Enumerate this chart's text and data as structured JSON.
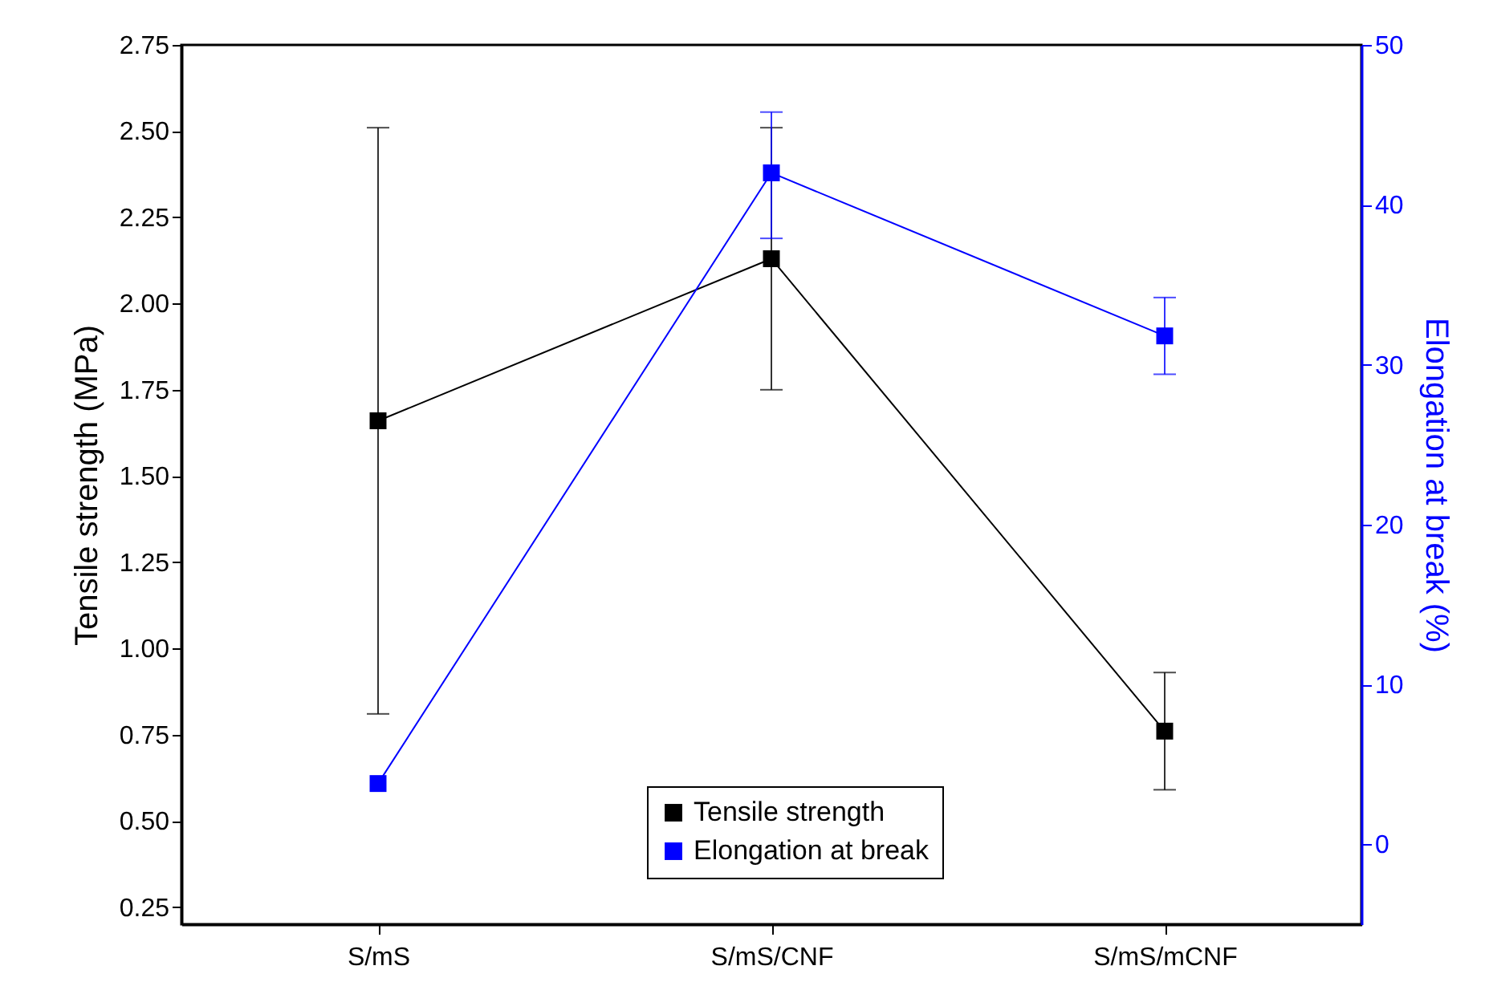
{
  "chart_data": {
    "type": "line",
    "categories": [
      "S/mS",
      "S/mS/CNF",
      "S/mS/mCNF"
    ],
    "ylabel": "Tensile strength (MPa)",
    "y2label": "Elongation at break (%)",
    "ylim": [
      0.2,
      2.75
    ],
    "yticks": [
      0.25,
      {
        "value": 0.5,
        "label": "0.50"
      },
      0.75,
      {
        "value": 1,
        "label": "1.00"
      },
      1.25,
      {
        "value": 1.5,
        "label": "1.50"
      },
      1.75,
      {
        "value": 2,
        "label": "2.00"
      },
      2.25,
      {
        "value": 2.5,
        "label": "2.50"
      },
      2.75
    ],
    "y2lim": [
      -5,
      50
    ],
    "y2ticks": [
      0,
      10,
      20,
      30,
      40,
      50
    ],
    "series": [
      {
        "name": "Tensile strength",
        "color": "#000000",
        "values": [
          1.66,
          2.13,
          0.76
        ],
        "errors": [
          [
            0.81,
            2.51
          ],
          [
            1.75,
            2.51
          ],
          [
            0.59,
            0.93
          ]
        ]
      },
      {
        "name": "Elongation at break",
        "color": "#0000ff",
        "axis": "y2",
        "values": [
          3.8,
          42,
          31.8
        ],
        "errors": [
          null,
          [
            37.9,
            45.8
          ],
          [
            29.4,
            34.2
          ]
        ]
      }
    ],
    "marker": "square",
    "line_style": "solid",
    "grid": false,
    "legend": "bottom"
  }
}
